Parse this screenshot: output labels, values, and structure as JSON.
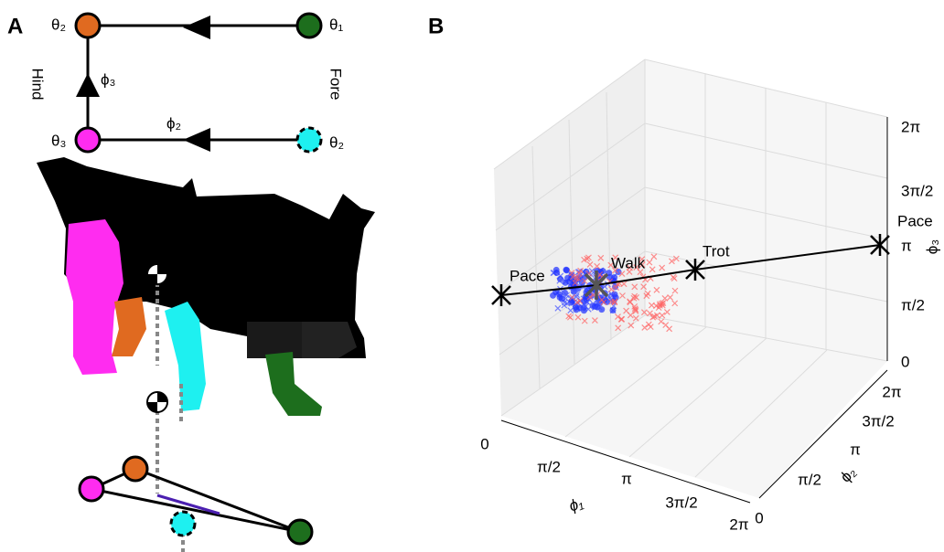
{
  "panel_a": {
    "label": "A",
    "nodes": [
      {
        "label": "θ₂"
      },
      {
        "label": "θ₁"
      },
      {
        "label": "θ₃"
      },
      {
        "label": "θ₂"
      }
    ],
    "edges": [
      {
        "label": "ϕ₃"
      },
      {
        "label": "ϕ₂"
      }
    ],
    "sides": [
      "Hind",
      "Fore"
    ]
  },
  "panel_b": {
    "label": "B",
    "x_axis": {
      "label": "ϕ₁",
      "ticks": [
        "0",
        "π/2",
        "π",
        "3π/2",
        "2π"
      ]
    },
    "y_axis": {
      "label": "ϕ₂",
      "ticks": [
        "0",
        "π/2",
        "π",
        "3π/2",
        "2π"
      ]
    },
    "z_axis": {
      "label": "ϕ₃",
      "ticks": [
        "0",
        "π/2",
        "π",
        "3π/2",
        "2π"
      ]
    },
    "annotations": [
      "Pace",
      "Walk",
      "Trot",
      "Pace"
    ]
  }
}
